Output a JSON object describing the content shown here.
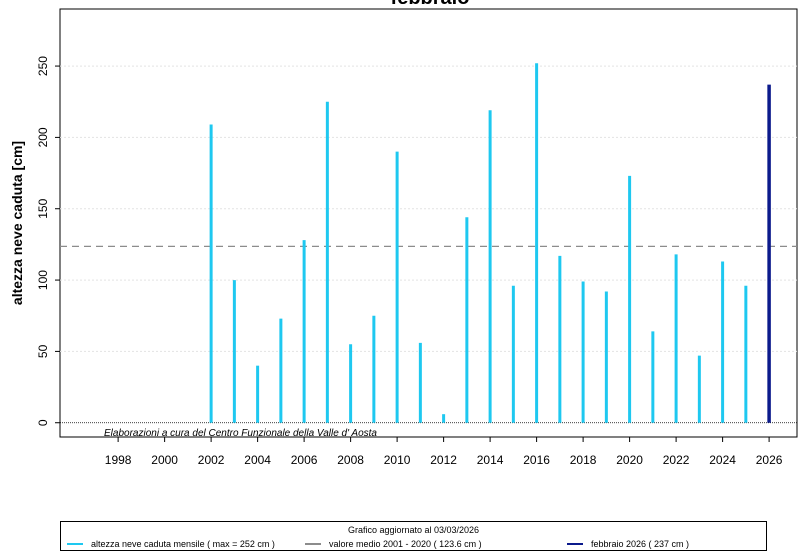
{
  "chart_data": {
    "type": "bar",
    "title": "febbraio",
    "ylabel": "altezza neve caduta [cm]",
    "xlabel": "",
    "xlim": [
      1995.5,
      2027.2
    ],
    "ylim": [
      -10,
      290
    ],
    "y_ticks": [
      0,
      50,
      100,
      150,
      200,
      250
    ],
    "x_ticks": [
      1998,
      2000,
      2002,
      2004,
      2006,
      2008,
      2010,
      2012,
      2014,
      2016,
      2018,
      2020,
      2022,
      2024,
      2026
    ],
    "grid": true,
    "credit": "Elaborazioni a cura del Centro Funzionale della Valle d' Aosta",
    "series": [
      {
        "name": "altezza neve caduta mensile",
        "color": "#1ec8f0",
        "x": [
          2002,
          2003,
          2004,
          2005,
          2006,
          2007,
          2008,
          2009,
          2010,
          2011,
          2012,
          2013,
          2014,
          2015,
          2016,
          2017,
          2018,
          2019,
          2020,
          2021,
          2022,
          2023,
          2024,
          2025
        ],
        "values": [
          209,
          100,
          40,
          73,
          128,
          225,
          55,
          75,
          190,
          56,
          6,
          144,
          219,
          96,
          252,
          117,
          99,
          92,
          173,
          64,
          118,
          47,
          113,
          96
        ]
      },
      {
        "name": "febbraio 2026",
        "color": "#0b1a8c",
        "x": [
          2026
        ],
        "values": [
          237
        ]
      }
    ],
    "reference_line": {
      "name": "valore medio 2001 - 2020",
      "value": 123.6,
      "color": "#8c8c8c",
      "style": "dashed"
    }
  },
  "legend": {
    "header": "Grafico aggiornato al 03/03/2026",
    "entries": [
      {
        "label": "altezza neve caduta mensile ( max =  252 cm )",
        "color": "#1ec8f0"
      },
      {
        "label": "valore medio  2001 - 2020 ( 123.6 cm )",
        "color": "#8c8c8c"
      },
      {
        "label": "febbraio 2026 ( 237 cm )",
        "color": "#0b1a8c"
      }
    ]
  }
}
